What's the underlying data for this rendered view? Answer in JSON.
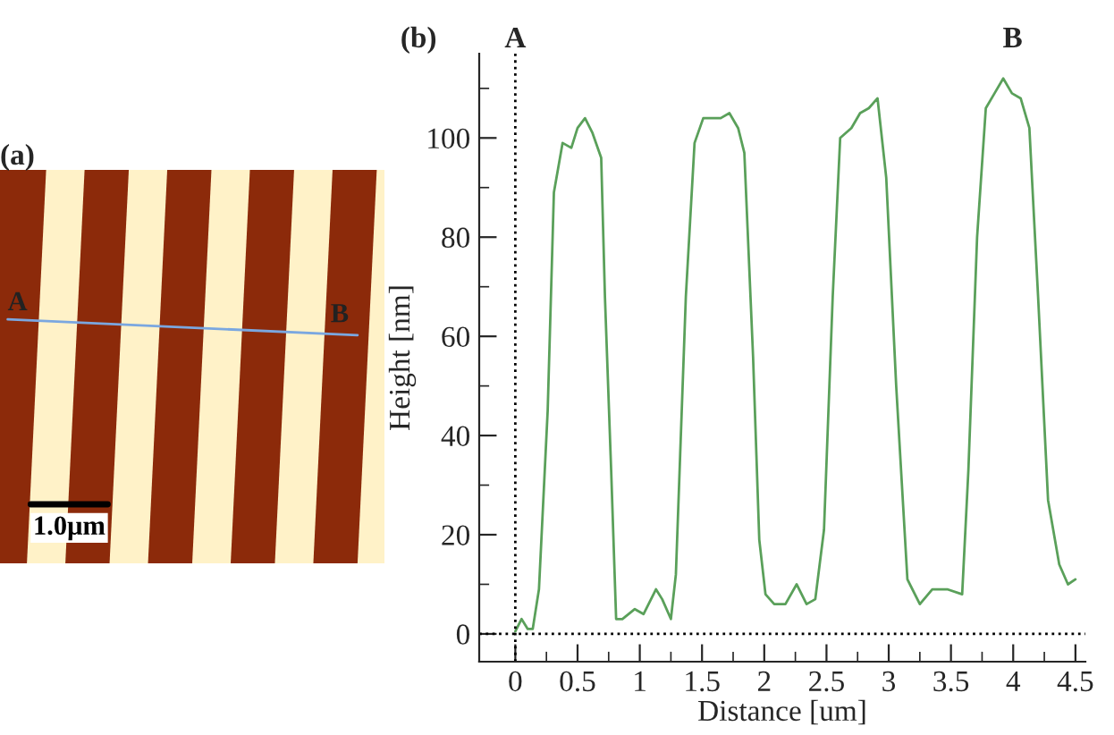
{
  "chart_data": [
    {
      "type": "other",
      "title": "(a)",
      "annotations": [
        "A",
        "B",
        "1.0μm"
      ]
    },
    {
      "type": "line",
      "title": "(b)",
      "xlabel": "Distance [um]",
      "ylabel": "Height [nm]",
      "series": [
        {
          "color": "#5aa05a",
          "x": [
            0,
            0.05,
            0.1,
            0.14,
            0.19,
            0.26,
            0.31,
            0.38,
            0.45,
            0.5,
            0.56,
            0.62,
            0.69,
            0.72,
            0.77,
            0.81,
            0.86,
            0.96,
            1.03,
            1.13,
            1.18,
            1.25,
            1.29,
            1.37,
            1.44,
            1.51,
            1.65,
            1.72,
            1.79,
            1.84,
            1.91,
            1.96,
            2.01,
            2.08,
            2.17,
            2.26,
            2.34,
            2.41,
            2.48,
            2.55,
            2.61,
            2.7,
            2.77,
            2.84,
            2.91,
            2.98,
            3.06,
            3.15,
            3.25,
            3.35,
            3.47,
            3.59,
            3.64,
            3.71,
            3.78,
            3.85,
            3.92,
            3.99,
            4.06,
            4.13,
            4.2,
            4.28,
            4.37,
            4.44,
            4.5
          ],
          "values": [
            0.5,
            3,
            1,
            1,
            9,
            45,
            89,
            99,
            98,
            102,
            104,
            101,
            96,
            68,
            33,
            3,
            3,
            5,
            4,
            9,
            7,
            3,
            12,
            68,
            99,
            104,
            104,
            105,
            102,
            97,
            56,
            19,
            8,
            6,
            6,
            10,
            6,
            7,
            21,
            68,
            100,
            102,
            105,
            106,
            108,
            92,
            50,
            11,
            6,
            9,
            9,
            8,
            33,
            80,
            106,
            109,
            112,
            109,
            108,
            102,
            68,
            27,
            14,
            10,
            11
          ]
        }
      ],
      "xlim": [
        -0.29,
        4.58
      ],
      "ylim": [
        -5.6,
        117
      ],
      "xticks": [
        0,
        {
          "value": 0.25,
          "label": null
        },
        {
          "value": 0.5,
          "label": "0.5"
        },
        {
          "value": 0.75,
          "label": null
        },
        1,
        {
          "value": 1.25,
          "label": null
        },
        {
          "value": 1.5,
          "label": "1.5"
        },
        {
          "value": 1.75,
          "label": null
        },
        2,
        {
          "value": 2.25,
          "label": null
        },
        {
          "value": 2.5,
          "label": "2.5"
        },
        {
          "value": 2.75,
          "label": null
        },
        3,
        {
          "value": 3.25,
          "label": null
        },
        {
          "value": 3.5,
          "label": "3.5"
        },
        {
          "value": 3.75,
          "label": null
        },
        4,
        {
          "value": 4.25,
          "label": null
        },
        {
          "value": 4.5,
          "label": "4.5"
        }
      ],
      "yticks": [
        0,
        {
          "value": 10,
          "label": null
        },
        20,
        {
          "value": 30,
          "label": null
        },
        40,
        {
          "value": 50,
          "label": null
        },
        60,
        {
          "value": 70,
          "label": null
        },
        80,
        {
          "value": 90,
          "label": null
        },
        100,
        {
          "value": 110,
          "label": null
        }
      ],
      "ref_lines": [
        {
          "axis": "x",
          "value": 0,
          "label": "A",
          "color": "#000000",
          "line_style": "dotted"
        },
        {
          "axis": "y",
          "value": 0,
          "label": null,
          "color": "#000000",
          "line_style": "dotted"
        }
      ],
      "annotations": [
        "B"
      ],
      "grid": false,
      "legend": false,
      "marker": "none",
      "line_style": "solid"
    }
  ]
}
